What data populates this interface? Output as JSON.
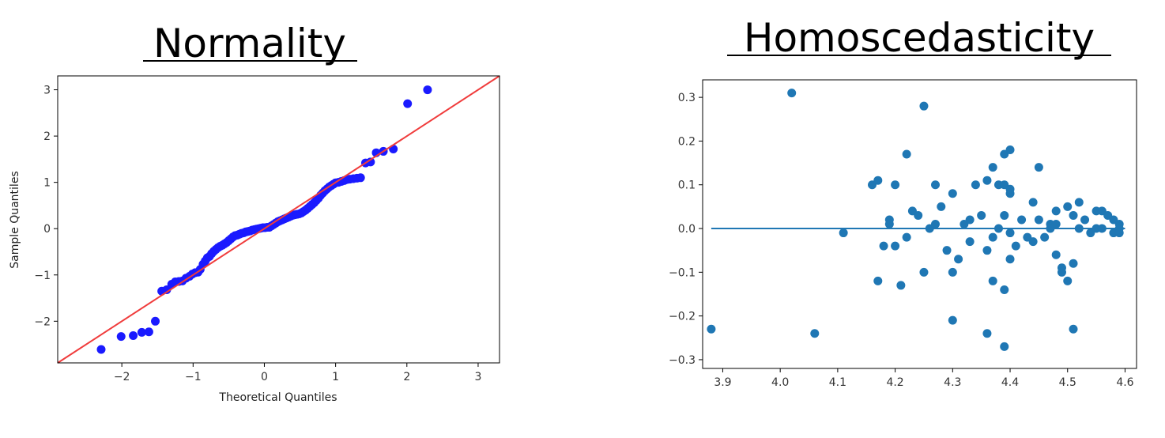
{
  "titles": {
    "left": "Normality",
    "right": "Homoscedasticity"
  },
  "colors": {
    "qq_points": "#1a1aff",
    "qq_line": "#f03c3c",
    "resid_points": "#1f77b4",
    "resid_line": "#1f77b4"
  },
  "chart_data": [
    {
      "type": "scatter",
      "title": "Normality",
      "xlabel": "Theoretical Quantiles",
      "ylabel": "Sample Quantiles",
      "xlim": [
        -2.9,
        3.3
      ],
      "ylim": [
        -2.9,
        3.3
      ],
      "xticks": [
        -2,
        -1,
        0,
        1,
        2,
        3
      ],
      "yticks": [
        -2,
        -1,
        0,
        1,
        2,
        3
      ],
      "tick_labels_x": [
        "−2",
        "−1",
        "0",
        "1",
        "2",
        "3"
      ],
      "tick_labels_y": [
        "−2",
        "−1",
        "0",
        "1",
        "2",
        "3"
      ],
      "reference_line": {
        "slope": 1,
        "intercept": 0
      },
      "points": [
        [
          -2.29,
          -2.61
        ],
        [
          -2.01,
          -2.33
        ],
        [
          -1.84,
          -2.31
        ],
        [
          -1.72,
          -2.24
        ],
        [
          -1.62,
          -2.23
        ],
        [
          -1.53,
          -2.0
        ],
        [
          -1.44,
          -1.35
        ],
        [
          -1.37,
          -1.32
        ],
        [
          -1.3,
          -1.2
        ],
        [
          -1.25,
          -1.15
        ],
        [
          -1.2,
          -1.14
        ],
        [
          -1.15,
          -1.13
        ],
        [
          -1.1,
          -1.07
        ],
        [
          -1.05,
          -1.03
        ],
        [
          -1.01,
          -0.98
        ],
        [
          -0.97,
          -0.95
        ],
        [
          -0.93,
          -0.94
        ],
        [
          -0.9,
          -0.88
        ],
        [
          -0.86,
          -0.77
        ],
        [
          -0.83,
          -0.7
        ],
        [
          -0.8,
          -0.63
        ],
        [
          -0.77,
          -0.6
        ],
        [
          -0.74,
          -0.54
        ],
        [
          -0.71,
          -0.49
        ],
        [
          -0.68,
          -0.45
        ],
        [
          -0.65,
          -0.41
        ],
        [
          -0.62,
          -0.38
        ],
        [
          -0.59,
          -0.36
        ],
        [
          -0.56,
          -0.33
        ],
        [
          -0.53,
          -0.3
        ],
        [
          -0.5,
          -0.26
        ],
        [
          -0.47,
          -0.22
        ],
        [
          -0.44,
          -0.18
        ],
        [
          -0.41,
          -0.15
        ],
        [
          -0.38,
          -0.14
        ],
        [
          -0.35,
          -0.12
        ],
        [
          -0.32,
          -0.1
        ],
        [
          -0.29,
          -0.09
        ],
        [
          -0.26,
          -0.07
        ],
        [
          -0.23,
          -0.06
        ],
        [
          -0.2,
          -0.05
        ],
        [
          -0.17,
          -0.03
        ],
        [
          -0.14,
          -0.02
        ],
        [
          -0.11,
          -0.01
        ],
        [
          -0.08,
          0.0
        ],
        [
          -0.05,
          0.01
        ],
        [
          -0.02,
          0.02
        ],
        [
          0.01,
          0.02
        ],
        [
          0.04,
          0.03
        ],
        [
          0.07,
          0.03
        ],
        [
          0.1,
          0.06
        ],
        [
          0.13,
          0.09
        ],
        [
          0.16,
          0.12
        ],
        [
          0.19,
          0.15
        ],
        [
          0.22,
          0.17
        ],
        [
          0.25,
          0.19
        ],
        [
          0.28,
          0.21
        ],
        [
          0.31,
          0.23
        ],
        [
          0.34,
          0.25
        ],
        [
          0.37,
          0.27
        ],
        [
          0.4,
          0.29
        ],
        [
          0.43,
          0.3
        ],
        [
          0.46,
          0.31
        ],
        [
          0.49,
          0.32
        ],
        [
          0.52,
          0.34
        ],
        [
          0.55,
          0.37
        ],
        [
          0.58,
          0.4
        ],
        [
          0.61,
          0.44
        ],
        [
          0.64,
          0.48
        ],
        [
          0.67,
          0.52
        ],
        [
          0.7,
          0.56
        ],
        [
          0.73,
          0.61
        ],
        [
          0.76,
          0.66
        ],
        [
          0.79,
          0.72
        ],
        [
          0.82,
          0.77
        ],
        [
          0.85,
          0.82
        ],
        [
          0.88,
          0.86
        ],
        [
          0.91,
          0.9
        ],
        [
          0.94,
          0.93
        ],
        [
          0.97,
          0.96
        ],
        [
          1.0,
          0.99
        ],
        [
          1.04,
          1.0
        ],
        [
          1.08,
          1.02
        ],
        [
          1.12,
          1.04
        ],
        [
          1.16,
          1.06
        ],
        [
          1.2,
          1.07
        ],
        [
          1.25,
          1.08
        ],
        [
          1.3,
          1.09
        ],
        [
          1.35,
          1.1
        ],
        [
          1.42,
          1.42
        ],
        [
          1.49,
          1.44
        ],
        [
          1.57,
          1.64
        ],
        [
          1.67,
          1.67
        ],
        [
          1.81,
          1.72
        ],
        [
          2.01,
          2.7
        ],
        [
          2.29,
          3.0
        ]
      ]
    },
    {
      "type": "scatter",
      "title": "Homoscedasticity",
      "xlabel": "",
      "ylabel": "",
      "xlim": [
        3.865,
        4.62
      ],
      "ylim": [
        -0.32,
        0.34
      ],
      "xticks": [
        3.9,
        4.0,
        4.1,
        4.2,
        4.3,
        4.4,
        4.5,
        4.6
      ],
      "yticks": [
        -0.3,
        -0.2,
        -0.1,
        0.0,
        0.1,
        0.2,
        0.3
      ],
      "tick_labels_x": [
        "3.9",
        "4.0",
        "4.1",
        "4.2",
        "4.3",
        "4.4",
        "4.5",
        "4.6"
      ],
      "tick_labels_y": [
        "−0.3",
        "−0.2",
        "−0.1",
        "0.0",
        "0.1",
        "0.2",
        "0.3"
      ],
      "zero_line": {
        "y": 0.0,
        "x_from": 3.88,
        "x_to": 4.6
      },
      "points": [
        [
          3.88,
          -0.23
        ],
        [
          4.02,
          0.31
        ],
        [
          4.06,
          -0.24
        ],
        [
          4.11,
          -0.01
        ],
        [
          4.16,
          0.1
        ],
        [
          4.17,
          -0.12
        ],
        [
          4.17,
          0.11
        ],
        [
          4.18,
          -0.04
        ],
        [
          4.19,
          0.02
        ],
        [
          4.19,
          0.01
        ],
        [
          4.2,
          0.1
        ],
        [
          4.2,
          -0.04
        ],
        [
          4.21,
          -0.13
        ],
        [
          4.22,
          0.17
        ],
        [
          4.22,
          -0.02
        ],
        [
          4.23,
          0.04
        ],
        [
          4.24,
          0.03
        ],
        [
          4.25,
          -0.1
        ],
        [
          4.25,
          0.28
        ],
        [
          4.26,
          0.0
        ],
        [
          4.27,
          0.01
        ],
        [
          4.27,
          0.1
        ],
        [
          4.28,
          0.05
        ],
        [
          4.29,
          -0.05
        ],
        [
          4.3,
          -0.1
        ],
        [
          4.3,
          0.08
        ],
        [
          4.3,
          -0.21
        ],
        [
          4.31,
          -0.07
        ],
        [
          4.32,
          0.01
        ],
        [
          4.33,
          0.02
        ],
        [
          4.33,
          -0.03
        ],
        [
          4.34,
          0.1
        ],
        [
          4.35,
          0.03
        ],
        [
          4.36,
          -0.24
        ],
        [
          4.36,
          -0.05
        ],
        [
          4.36,
          0.11
        ],
        [
          4.37,
          0.14
        ],
        [
          4.37,
          -0.12
        ],
        [
          4.37,
          -0.02
        ],
        [
          4.38,
          0.1
        ],
        [
          4.38,
          0.0
        ],
        [
          4.39,
          0.03
        ],
        [
          4.39,
          0.17
        ],
        [
          4.39,
          0.1
        ],
        [
          4.39,
          -0.14
        ],
        [
          4.39,
          -0.27
        ],
        [
          4.4,
          0.18
        ],
        [
          4.4,
          -0.07
        ],
        [
          4.4,
          0.08
        ],
        [
          4.4,
          0.09
        ],
        [
          4.4,
          -0.01
        ],
        [
          4.41,
          -0.04
        ],
        [
          4.42,
          0.02
        ],
        [
          4.43,
          -0.02
        ],
        [
          4.44,
          0.06
        ],
        [
          4.44,
          -0.03
        ],
        [
          4.45,
          0.02
        ],
        [
          4.45,
          0.14
        ],
        [
          4.46,
          -0.02
        ],
        [
          4.47,
          0.01
        ],
        [
          4.47,
          0.0
        ],
        [
          4.48,
          0.04
        ],
        [
          4.48,
          -0.06
        ],
        [
          4.48,
          0.01
        ],
        [
          4.49,
          -0.09
        ],
        [
          4.49,
          -0.1
        ],
        [
          4.5,
          0.05
        ],
        [
          4.5,
          -0.12
        ],
        [
          4.51,
          -0.08
        ],
        [
          4.51,
          0.03
        ],
        [
          4.51,
          -0.23
        ],
        [
          4.52,
          0.06
        ],
        [
          4.52,
          0.0
        ],
        [
          4.53,
          0.02
        ],
        [
          4.54,
          -0.01
        ],
        [
          4.55,
          0.04
        ],
        [
          4.55,
          0.0
        ],
        [
          4.56,
          0.0
        ],
        [
          4.56,
          0.04
        ],
        [
          4.57,
          0.03
        ],
        [
          4.58,
          -0.01
        ],
        [
          4.58,
          0.02
        ],
        [
          4.59,
          0.0
        ],
        [
          4.59,
          -0.01
        ],
        [
          4.59,
          0.01
        ]
      ]
    }
  ]
}
